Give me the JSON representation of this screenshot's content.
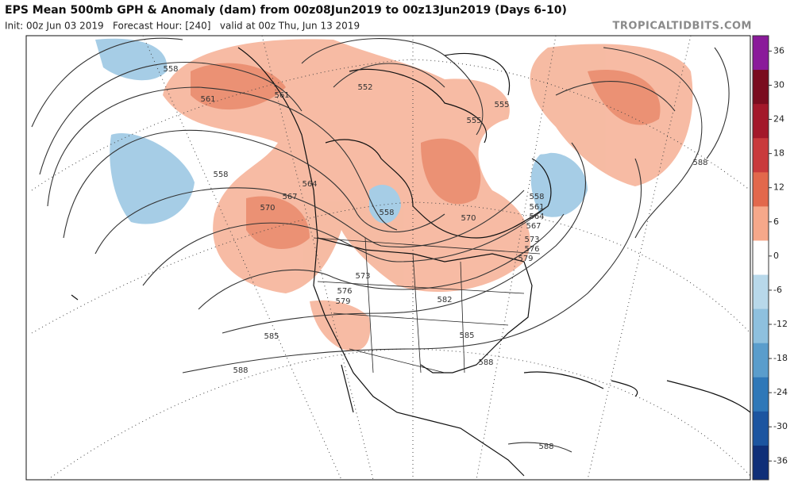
{
  "header": {
    "title": "EPS Mean 500mb GPH & Anomaly (dam) from 00z08Jun2019 to 00z13Jun2019 (Days 6-10)",
    "subtitle": "Init: 00z Jun 03 2019   Forecast Hour: [240]   valid at 00z Thu, Jun 13 2019",
    "credit": "TROPICALTIDBITS.COM"
  },
  "colorbar": {
    "ticks": [
      36,
      30,
      24,
      18,
      12,
      6,
      0,
      -6,
      -12,
      -18,
      -24,
      -30,
      -36
    ],
    "colors": [
      "#8a1a9a",
      "#7a0c1e",
      "#a3182a",
      "#c93a3c",
      "#e2684c",
      "#f6a88a",
      "#ffffff",
      "#b8d8ea",
      "#8ec0de",
      "#5a9dcc",
      "#2f78b8",
      "#1c55a0",
      "#0f2f78"
    ]
  },
  "contour_labels": [
    558,
    561,
    561,
    552,
    555,
    555,
    558,
    564,
    567,
    570,
    558,
    570,
    558,
    561,
    564,
    567,
    573,
    576,
    579,
    573,
    576,
    579,
    582,
    585,
    585,
    588,
    588,
    588,
    588
  ]
}
